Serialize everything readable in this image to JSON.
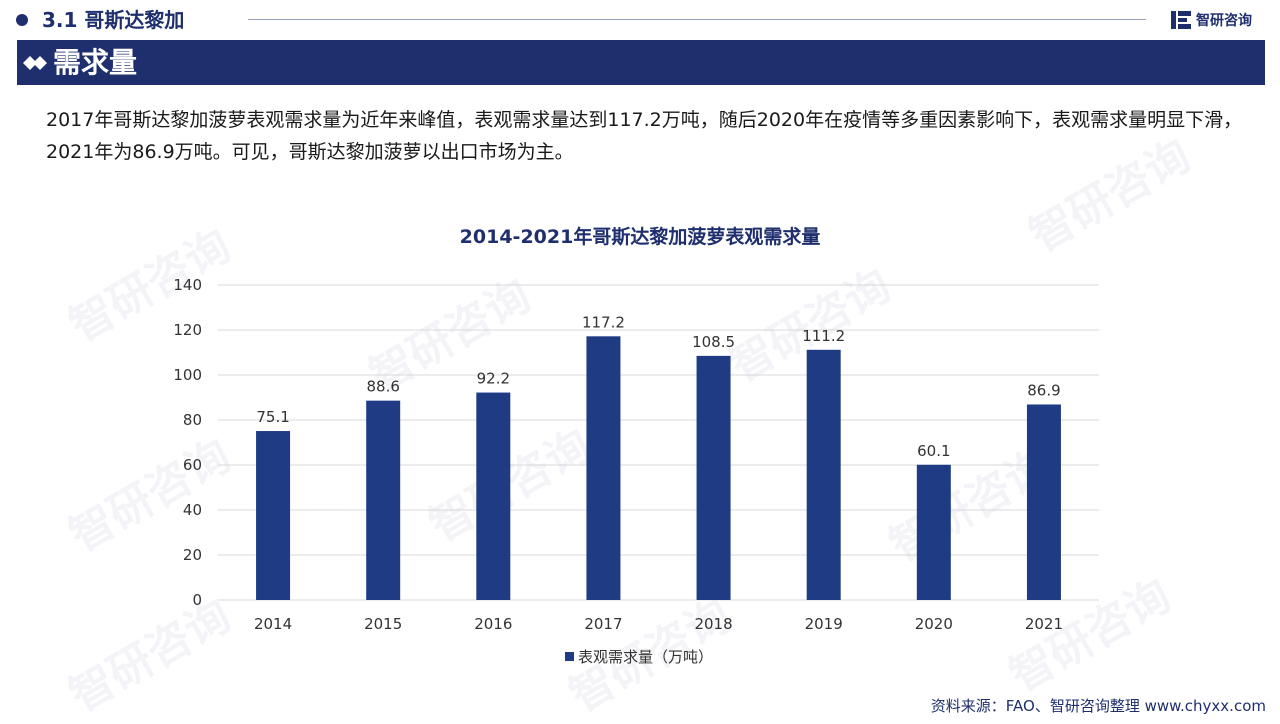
{
  "header": {
    "section_title": "3.1 哥斯达黎加",
    "brand_name": "智研咨询"
  },
  "banner": {
    "title": "需求量"
  },
  "description": "2017年哥斯达黎加菠萝表观需求量为近年来峰值，表观需求量达到117.2万吨，随后2020年在疫情等多重因素影响下，表观需求量明显下滑，2021年为86.9万吨。可见，哥斯达黎加菠萝以出口市场为主。",
  "watermark": "智研咨询",
  "source": "资料来源：FAO、智研咨询整理  www.chyxx.com",
  "colors": {
    "primary": "#1f2f6e",
    "bar": "#1f3b84",
    "grid": "#d9d9d9"
  },
  "chart_data": {
    "type": "bar",
    "title": "2014-2021年哥斯达黎加菠萝表观需求量",
    "categories": [
      "2014",
      "2015",
      "2016",
      "2017",
      "2018",
      "2019",
      "2020",
      "2021"
    ],
    "series": [
      {
        "name": "表观需求量（万吨）",
        "values": [
          75.1,
          88.6,
          92.2,
          117.2,
          108.5,
          111.2,
          60.1,
          86.9
        ]
      }
    ],
    "data_labels": [
      "75.1",
      "88.6",
      "92.2",
      "117.2",
      "108.5",
      "111.2",
      "60.1",
      "86.9"
    ],
    "y_ticks": [
      "0",
      "20",
      "40",
      "60",
      "80",
      "100",
      "120",
      "140"
    ],
    "ylim": [
      0,
      140
    ],
    "grid": true,
    "legend_position": "bottom"
  }
}
